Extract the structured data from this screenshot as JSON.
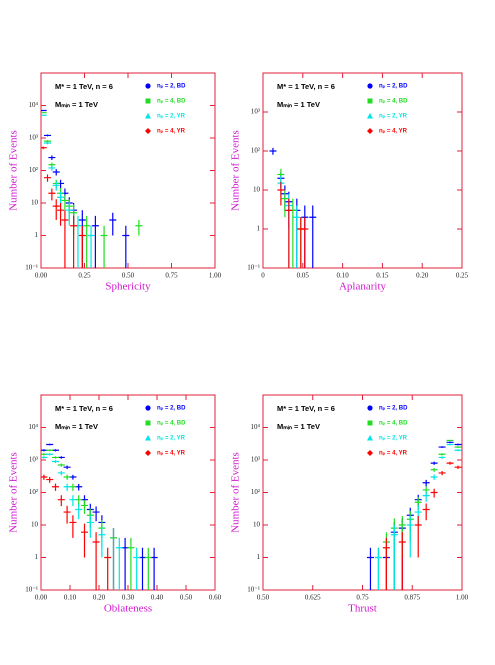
{
  "chart_data": [
    {
      "type": "errorbar",
      "xlabel": "Sphericity",
      "ylabel": "Number of Events",
      "annotations": [
        "M* = 1 TeV, n = 6",
        "Mₘᵢₙ = 1 TeV"
      ],
      "xlim": [
        0,
        1
      ],
      "xticks": [
        {
          "value": 0,
          "label": "0.00"
        },
        0.25,
        {
          "value": 0.5,
          "label": "0.50"
        },
        0.75,
        {
          "value": 1,
          "label": "1.00"
        }
      ],
      "ylim": [
        0.1,
        100000
      ],
      "log_y": true,
      "yticks": [
        {
          "value": 0.1,
          "label": "10⁻¹"
        },
        1,
        10,
        {
          "value": 100,
          "label": "10²"
        },
        {
          "value": 1000,
          "label": "10³"
        },
        {
          "value": 10000,
          "label": "10⁴"
        }
      ],
      "series": [
        {
          "name": "nₚ = 2, BD",
          "color": "#0000ff",
          "marker": "circle",
          "x": [
            0.0125,
            0.0375,
            0.0625,
            0.0875,
            0.1125,
            0.1375,
            0.1625,
            0.1875,
            0.2375,
            0.3125,
            0.4125,
            0.4875
          ],
          "values": [
            7000,
            1200,
            250,
            90,
            40,
            20,
            10,
            6,
            3,
            2,
            3,
            1
          ],
          "errors": [
            200,
            80,
            40,
            20,
            12,
            8,
            5,
            4,
            3,
            2,
            2,
            1
          ]
        },
        {
          "name": "nₚ = 4, BD",
          "color": "#22dd22",
          "marker": "square",
          "x": [
            0.0125,
            0.0375,
            0.0625,
            0.0875,
            0.1125,
            0.1375,
            0.1625,
            0.1875,
            0.2625,
            0.3625,
            0.5625
          ],
          "values": [
            6000,
            800,
            150,
            40,
            20,
            12,
            8,
            5,
            2,
            1,
            2
          ],
          "errors": [
            150,
            60,
            25,
            12,
            9,
            6,
            5,
            4,
            2,
            1,
            1
          ]
        },
        {
          "name": "nₚ = 2, YR",
          "color": "#00e5e5",
          "marker": "triangle",
          "x": [
            0.0125,
            0.0375,
            0.0625,
            0.0875,
            0.1125,
            0.1625,
            0.2125,
            0.2875
          ],
          "values": [
            5000,
            700,
            120,
            35,
            15,
            6,
            2,
            1
          ],
          "errors": [
            140,
            55,
            22,
            11,
            7,
            4,
            2,
            1
          ]
        },
        {
          "name": "nₚ = 4, YR",
          "color": "#ff0000",
          "marker": "diamond",
          "x": [
            0.0125,
            0.0375,
            0.0625,
            0.0875,
            0.1125,
            0.1375,
            0.1875,
            0.2375
          ],
          "values": [
            500,
            60,
            20,
            8,
            6,
            3,
            2,
            1
          ],
          "errors": [
            45,
            15,
            8,
            5,
            4,
            3,
            2,
            1
          ]
        }
      ]
    },
    {
      "type": "errorbar",
      "xlabel": "Aplanarity",
      "ylabel": "Number of Events",
      "annotations": [
        "M* = 1 TeV, n = 6",
        "Mₘᵢₙ = 1 TeV"
      ],
      "xlim": [
        0,
        0.25
      ],
      "xticks": [
        0,
        0.05,
        {
          "value": 0.1,
          "label": "0.10"
        },
        0.15,
        {
          "value": 0.2,
          "label": "0.20"
        },
        0.25
      ],
      "ylim": [
        0.1,
        10000
      ],
      "log_y": true,
      "yticks": [
        {
          "value": 0.1,
          "label": "10⁻¹"
        },
        1,
        10,
        {
          "value": 100,
          "label": "10²"
        },
        {
          "value": 1000,
          "label": "10³"
        }
      ],
      "series": [
        {
          "name": "nₚ = 2, BD",
          "color": "#0000ff",
          "marker": "circle",
          "x": [
            0.0125,
            0.0225,
            0.0275,
            0.0325,
            0.0425,
            0.0525,
            0.0625
          ],
          "values": [
            100,
            20,
            8,
            5,
            3,
            2,
            2
          ],
          "errors": [
            20,
            9,
            5,
            4,
            3,
            2,
            2
          ]
        },
        {
          "name": "nₚ = 4, BD",
          "color": "#22dd22",
          "marker": "square",
          "x": [
            0.0225,
            0.0275,
            0.0375,
            0.0475
          ],
          "values": [
            25,
            6,
            3,
            1
          ],
          "errors": [
            10,
            4,
            3,
            1
          ]
        },
        {
          "name": "nₚ = 2, YR",
          "color": "#00e5e5",
          "marker": "triangle",
          "x": [
            0.0225,
            0.0325,
            0.0425
          ],
          "values": [
            15,
            4,
            2
          ],
          "errors": [
            8,
            4,
            2
          ]
        },
        {
          "name": "nₚ = 4, YR",
          "color": "#ff0000",
          "marker": "diamond",
          "x": [
            0.0225,
            0.0325,
            0.0475,
            0.0525
          ],
          "values": [
            10,
            3,
            1,
            1
          ],
          "errors": [
            6,
            3,
            1,
            1
          ]
        }
      ]
    },
    {
      "type": "errorbar",
      "xlabel": "Oblateness",
      "ylabel": "Number of Events",
      "annotations": [
        "M* = 1 TeV, n = 6",
        "Mₘᵢₙ = 1 TeV"
      ],
      "xlim": [
        0,
        0.6
      ],
      "xticks": [
        {
          "value": 0,
          "label": "0.00"
        },
        {
          "value": 0.1,
          "label": "0.10"
        },
        {
          "value": 0.2,
          "label": "0.20"
        },
        {
          "value": 0.3,
          "label": "0.30"
        },
        {
          "value": 0.4,
          "label": "0.40"
        },
        {
          "value": 0.5,
          "label": "0.50"
        },
        {
          "value": 0.6,
          "label": "0.60"
        }
      ],
      "ylim": [
        0.1,
        100000
      ],
      "log_y": true,
      "yticks": [
        {
          "value": 0.1,
          "label": "10⁻¹"
        },
        1,
        10,
        {
          "value": 100,
          "label": "10²"
        },
        {
          "value": 1000,
          "label": "10³"
        },
        {
          "value": 10000,
          "label": "10⁴"
        }
      ],
      "series": [
        {
          "name": "nₚ = 2, BD",
          "color": "#0000ff",
          "marker": "circle",
          "x": [
            0.01,
            0.03,
            0.05,
            0.07,
            0.09,
            0.11,
            0.13,
            0.15,
            0.17,
            0.19,
            0.21,
            0.25,
            0.29,
            0.35,
            0.39
          ],
          "values": [
            2000,
            3000,
            2000,
            1200,
            600,
            300,
            150,
            60,
            30,
            25,
            12,
            4,
            2,
            1,
            1
          ],
          "errors": [
            150,
            180,
            150,
            110,
            75,
            50,
            35,
            22,
            15,
            12,
            8,
            4,
            2,
            1,
            1
          ]
        },
        {
          "name": "nₚ = 4, BD",
          "color": "#22dd22",
          "marker": "square",
          "x": [
            0.01,
            0.03,
            0.05,
            0.07,
            0.09,
            0.11,
            0.13,
            0.15,
            0.17,
            0.21,
            0.25,
            0.31,
            0.37
          ],
          "values": [
            1500,
            2000,
            1200,
            700,
            300,
            150,
            60,
            40,
            20,
            8,
            4,
            2,
            1
          ],
          "errors": [
            120,
            140,
            110,
            80,
            55,
            38,
            22,
            18,
            12,
            6,
            4,
            2,
            1
          ]
        },
        {
          "name": "nₚ = 2, YR",
          "color": "#00e5e5",
          "marker": "triangle",
          "x": [
            0.01,
            0.03,
            0.05,
            0.07,
            0.09,
            0.11,
            0.13,
            0.17,
            0.21,
            0.27,
            0.33
          ],
          "values": [
            1200,
            1500,
            900,
            400,
            150,
            60,
            30,
            12,
            5,
            2,
            1
          ],
          "errors": [
            110,
            120,
            95,
            60,
            38,
            22,
            15,
            8,
            4,
            2,
            1
          ]
        },
        {
          "name": "nₚ = 4, YR",
          "color": "#ff0000",
          "marker": "diamond",
          "x": [
            0.01,
            0.03,
            0.05,
            0.07,
            0.09,
            0.11,
            0.15,
            0.19,
            0.23
          ],
          "values": [
            300,
            250,
            150,
            60,
            25,
            12,
            6,
            3,
            1
          ],
          "errors": [
            55,
            50,
            38,
            22,
            14,
            8,
            5,
            3,
            1
          ]
        }
      ]
    },
    {
      "type": "errorbar",
      "xlabel": "Thrust",
      "ylabel": "Number of Events",
      "annotations": [
        "M* = 1 TeV, n = 6",
        "Mₘᵢₙ = 1 TeV"
      ],
      "xlim": [
        0.5,
        1
      ],
      "xticks": [
        {
          "value": 0.5,
          "label": "0.50"
        },
        0.625,
        0.75,
        0.875,
        {
          "value": 1,
          "label": "1.00"
        }
      ],
      "ylim": [
        0.1,
        100000
      ],
      "log_y": true,
      "yticks": [
        {
          "value": 0.1,
          "label": "10⁻¹"
        },
        1,
        10,
        {
          "value": 100,
          "label": "10²"
        },
        {
          "value": 1000,
          "label": "10³"
        },
        {
          "value": 10000,
          "label": "10⁴"
        }
      ],
      "series": [
        {
          "name": "nₚ = 2, BD",
          "color": "#0000ff",
          "marker": "circle",
          "x": [
            0.99,
            0.97,
            0.95,
            0.93,
            0.91,
            0.89,
            0.87,
            0.85,
            0.83,
            0.81,
            0.77
          ],
          "values": [
            3000,
            3500,
            2500,
            800,
            200,
            60,
            20,
            8,
            6,
            1,
            1
          ],
          "errors": [
            180,
            190,
            160,
            90,
            45,
            25,
            14,
            8,
            6,
            1,
            1
          ]
        },
        {
          "name": "nₚ = 4, BD",
          "color": "#22dd22",
          "marker": "square",
          "x": [
            0.99,
            0.97,
            0.95,
            0.93,
            0.91,
            0.89,
            0.87,
            0.85,
            0.83,
            0.81,
            0.79
          ],
          "values": [
            2500,
            4000,
            1500,
            500,
            120,
            50,
            15,
            10,
            8,
            3,
            1
          ],
          "errors": [
            160,
            200,
            120,
            70,
            35,
            22,
            12,
            9,
            8,
            3,
            1
          ]
        },
        {
          "name": "nₚ = 2, YR",
          "color": "#00e5e5",
          "marker": "triangle",
          "x": [
            0.99,
            0.97,
            0.95,
            0.93,
            0.91,
            0.89,
            0.87,
            0.83,
            0.79
          ],
          "values": [
            2000,
            3000,
            1200,
            300,
            80,
            25,
            10,
            5,
            1
          ],
          "errors": [
            140,
            180,
            110,
            55,
            28,
            15,
            9,
            5,
            1
          ]
        },
        {
          "name": "nₚ = 4, YR",
          "color": "#ff0000",
          "marker": "diamond",
          "x": [
            0.99,
            0.97,
            0.95,
            0.93,
            0.91,
            0.89,
            0.85,
            0.81
          ],
          "values": [
            600,
            800,
            400,
            100,
            30,
            10,
            3,
            2
          ],
          "errors": [
            70,
            85,
            60,
            30,
            16,
            9,
            3,
            2
          ]
        }
      ]
    }
  ]
}
